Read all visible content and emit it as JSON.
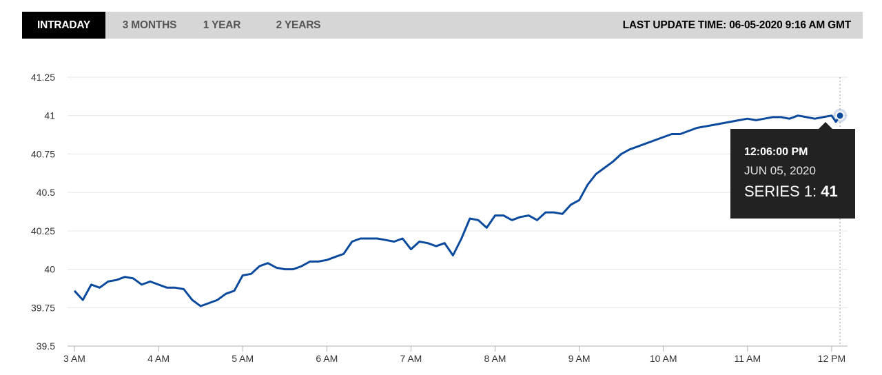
{
  "tabs": [
    {
      "label": "INTRADAY",
      "active": true
    },
    {
      "label": "3 MONTHS",
      "active": false
    },
    {
      "label": "1 YEAR",
      "active": false
    },
    {
      "label": "2 YEARS",
      "active": false
    }
  ],
  "last_update": "LAST UPDATE TIME: 06-05-2020 9:16 AM GMT",
  "tooltip": {
    "time": "12:06:00 PM",
    "date": "JUN 05, 2020",
    "series_label": "SERIES 1:",
    "series_value": "41"
  },
  "colors": {
    "line": "#0b4a9c",
    "active_tab": "#000000",
    "tab_bar": "#d6d6d6",
    "tooltip_bg": "#222222"
  },
  "chart_data": {
    "type": "line",
    "ylim": [
      39.5,
      41.25
    ],
    "y_ticks": [
      "39.5",
      "39.75",
      "40",
      "40.25",
      "40.5",
      "40.75",
      "41",
      "41.25"
    ],
    "x_ticks": [
      "3 AM",
      "4 AM",
      "5 AM",
      "6 AM",
      "7 AM",
      "8 AM",
      "9 AM",
      "10 AM",
      "11 AM",
      "12 PM"
    ],
    "x_range_hours": [
      3,
      12.1
    ],
    "grid": "horizontal",
    "series": [
      {
        "name": "SERIES 1",
        "x": [
          3.0,
          3.1,
          3.2,
          3.3,
          3.4,
          3.5,
          3.6,
          3.7,
          3.8,
          3.9,
          4.0,
          4.1,
          4.2,
          4.3,
          4.4,
          4.5,
          4.6,
          4.7,
          4.8,
          4.9,
          5.0,
          5.1,
          5.2,
          5.3,
          5.4,
          5.5,
          5.6,
          5.7,
          5.8,
          5.9,
          6.0,
          6.1,
          6.2,
          6.3,
          6.4,
          6.5,
          6.6,
          6.7,
          6.8,
          6.9,
          7.0,
          7.1,
          7.2,
          7.3,
          7.4,
          7.5,
          7.6,
          7.7,
          7.8,
          7.9,
          8.0,
          8.1,
          8.2,
          8.3,
          8.4,
          8.5,
          8.6,
          8.7,
          8.8,
          8.9,
          9.0,
          9.1,
          9.2,
          9.3,
          9.4,
          9.5,
          9.6,
          9.7,
          9.8,
          9.9,
          10.0,
          10.1,
          10.2,
          10.3,
          10.4,
          10.5,
          10.6,
          10.7,
          10.8,
          10.9,
          11.0,
          11.1,
          11.2,
          11.3,
          11.4,
          11.5,
          11.6,
          11.7,
          11.8,
          11.9,
          12.0,
          12.05,
          12.1
        ],
        "values": [
          39.86,
          39.8,
          39.9,
          39.88,
          39.92,
          39.93,
          39.95,
          39.94,
          39.9,
          39.92,
          39.9,
          39.88,
          39.88,
          39.87,
          39.8,
          39.76,
          39.78,
          39.8,
          39.84,
          39.86,
          39.96,
          39.97,
          40.02,
          40.04,
          40.01,
          40.0,
          40.0,
          40.02,
          40.05,
          40.05,
          40.06,
          40.08,
          40.1,
          40.18,
          40.2,
          40.2,
          40.2,
          40.19,
          40.18,
          40.2,
          40.13,
          40.18,
          40.17,
          40.15,
          40.17,
          40.09,
          40.2,
          40.33,
          40.32,
          40.27,
          40.35,
          40.35,
          40.32,
          40.34,
          40.35,
          40.32,
          40.37,
          40.37,
          40.36,
          40.42,
          40.45,
          40.55,
          40.62,
          40.66,
          40.7,
          40.75,
          40.78,
          40.8,
          40.82,
          40.84,
          40.86,
          40.88,
          40.88,
          40.9,
          40.92,
          40.93,
          40.94,
          40.95,
          40.96,
          40.97,
          40.98,
          40.97,
          40.98,
          40.99,
          40.99,
          40.98,
          41.0,
          40.99,
          40.98,
          40.99,
          41.0,
          40.96,
          41.0
        ]
      }
    ]
  }
}
